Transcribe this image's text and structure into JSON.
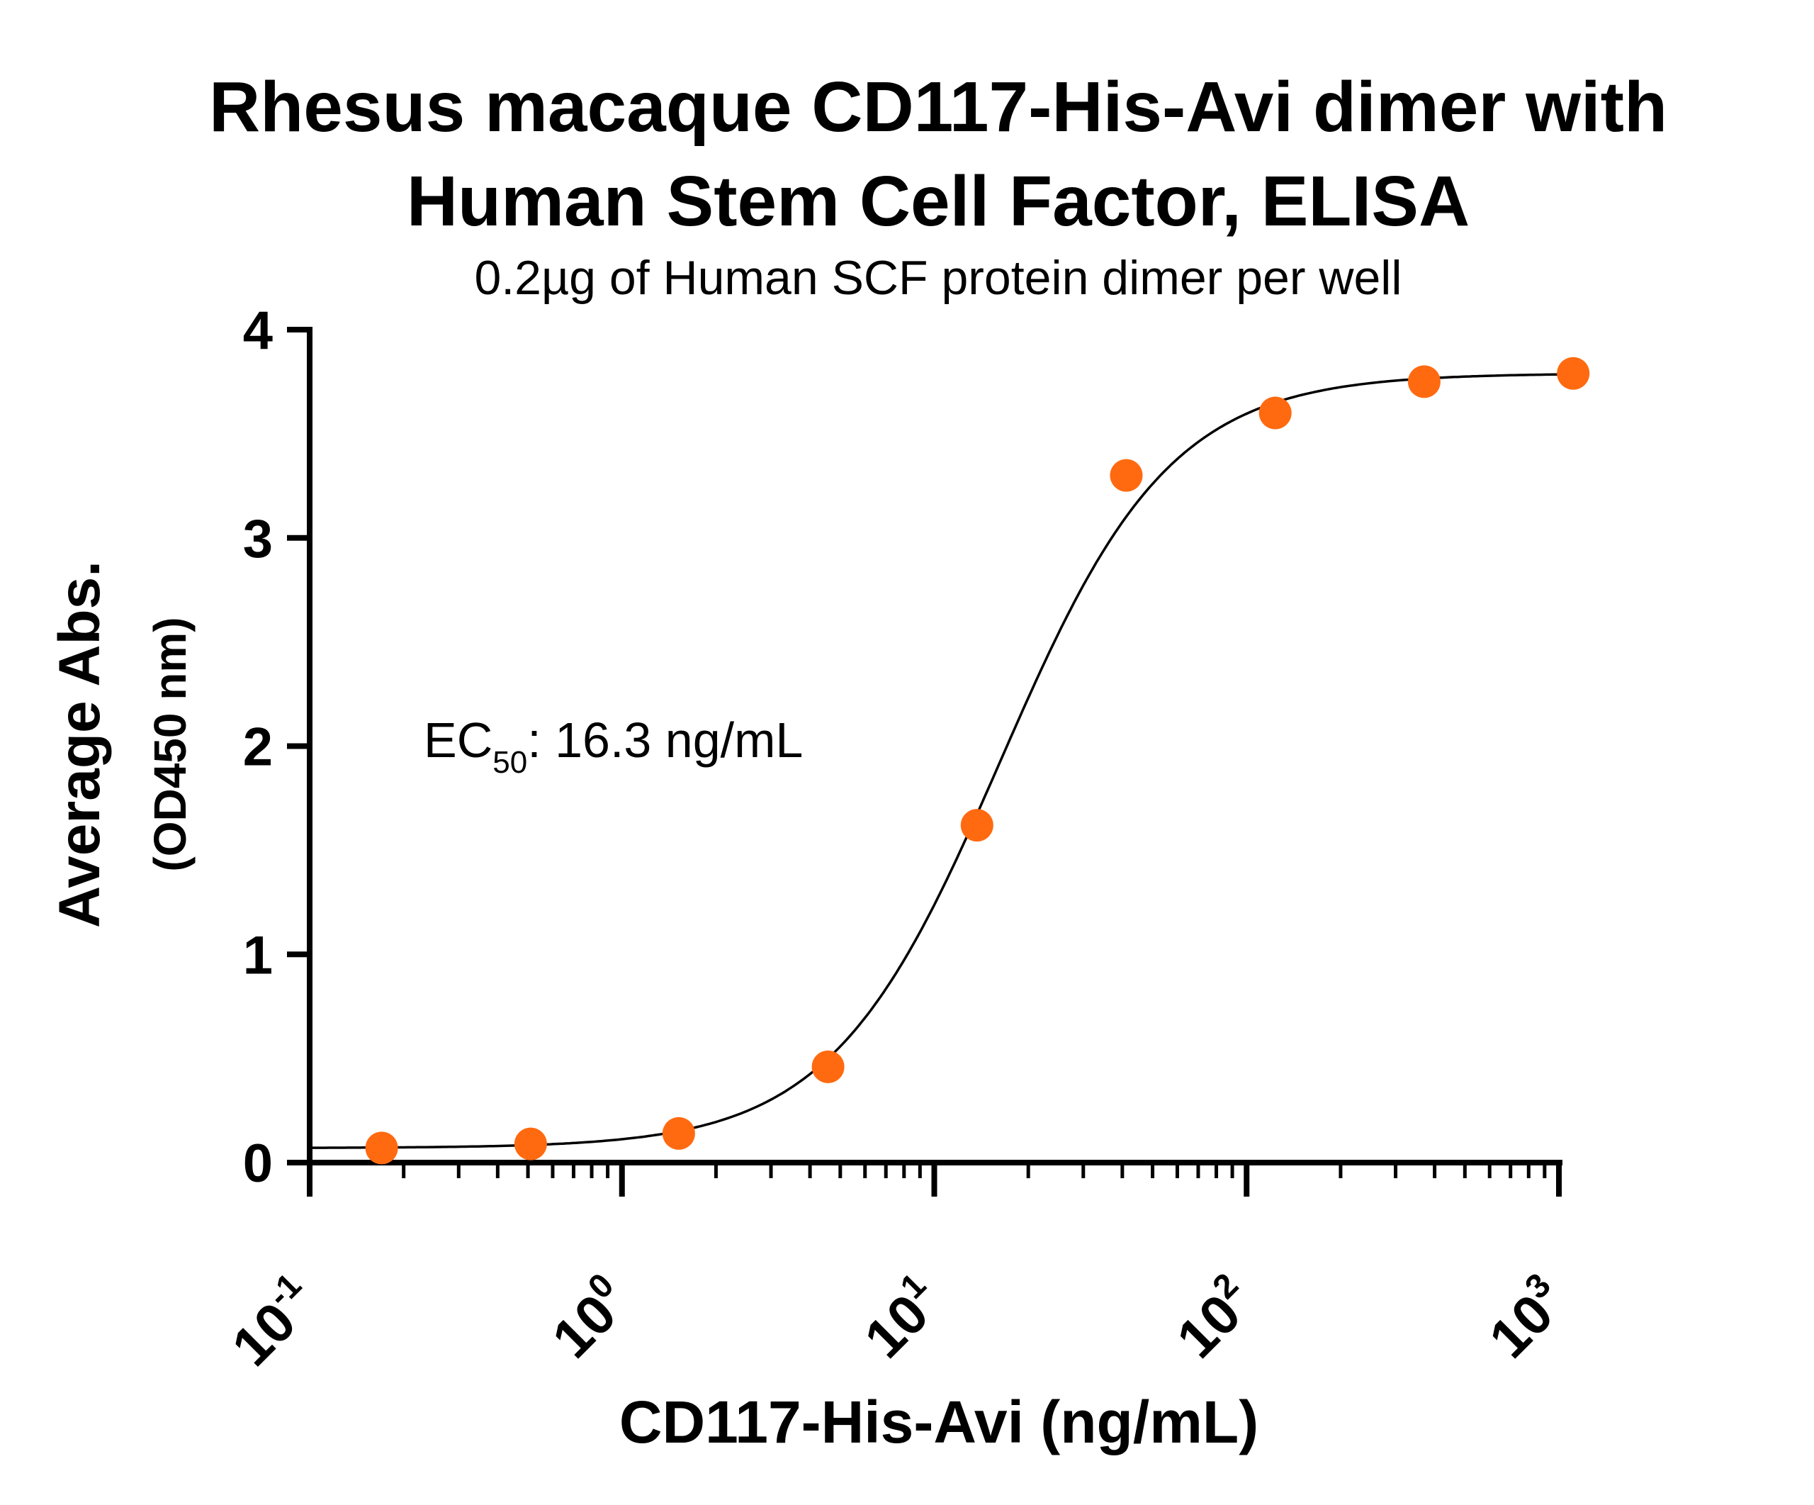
{
  "chart_data": {
    "type": "scatter",
    "title_line1": "Rhesus macaque CD117-His-Avi dimer with",
    "title_line2": "Human Stem Cell Factor, ELISA",
    "subtitle": "0.2µg of Human SCF protein dimer per well",
    "xlabel": "CD117-His-Avi  (ng/mL)",
    "ylabel_line1": "Average Abs.",
    "ylabel_line2": "(OD450 nm)",
    "x_scale": "log10",
    "xlim": [
      0.1,
      1000
    ],
    "ylim": [
      0,
      4
    ],
    "x_ticks": [
      {
        "base": "10",
        "exp": "-1"
      },
      {
        "base": "10",
        "exp": "0"
      },
      {
        "base": "10",
        "exp": "1"
      },
      {
        "base": "10",
        "exp": "2"
      },
      {
        "base": "10",
        "exp": "3"
      }
    ],
    "y_ticks": [
      "0",
      "1",
      "2",
      "3",
      "4"
    ],
    "annotation": {
      "prefix": "EC",
      "subscript": "50",
      "suffix": ": 16.3 ng/mL"
    },
    "point_color": "#FF6A10",
    "curve_color": "#000000",
    "series": [
      {
        "x": [
          0.17,
          0.51,
          1.52,
          4.57,
          13.7,
          41.2,
          123.5,
          370.4,
          1111.1
        ],
        "y": [
          0.07,
          0.09,
          0.14,
          0.46,
          1.62,
          3.3,
          3.6,
          3.75,
          3.79
        ]
      }
    ],
    "fit": {
      "model": "4PL",
      "bottom": 0.07,
      "top": 3.79,
      "ec50": 16.3,
      "hill": 1.6
    }
  }
}
